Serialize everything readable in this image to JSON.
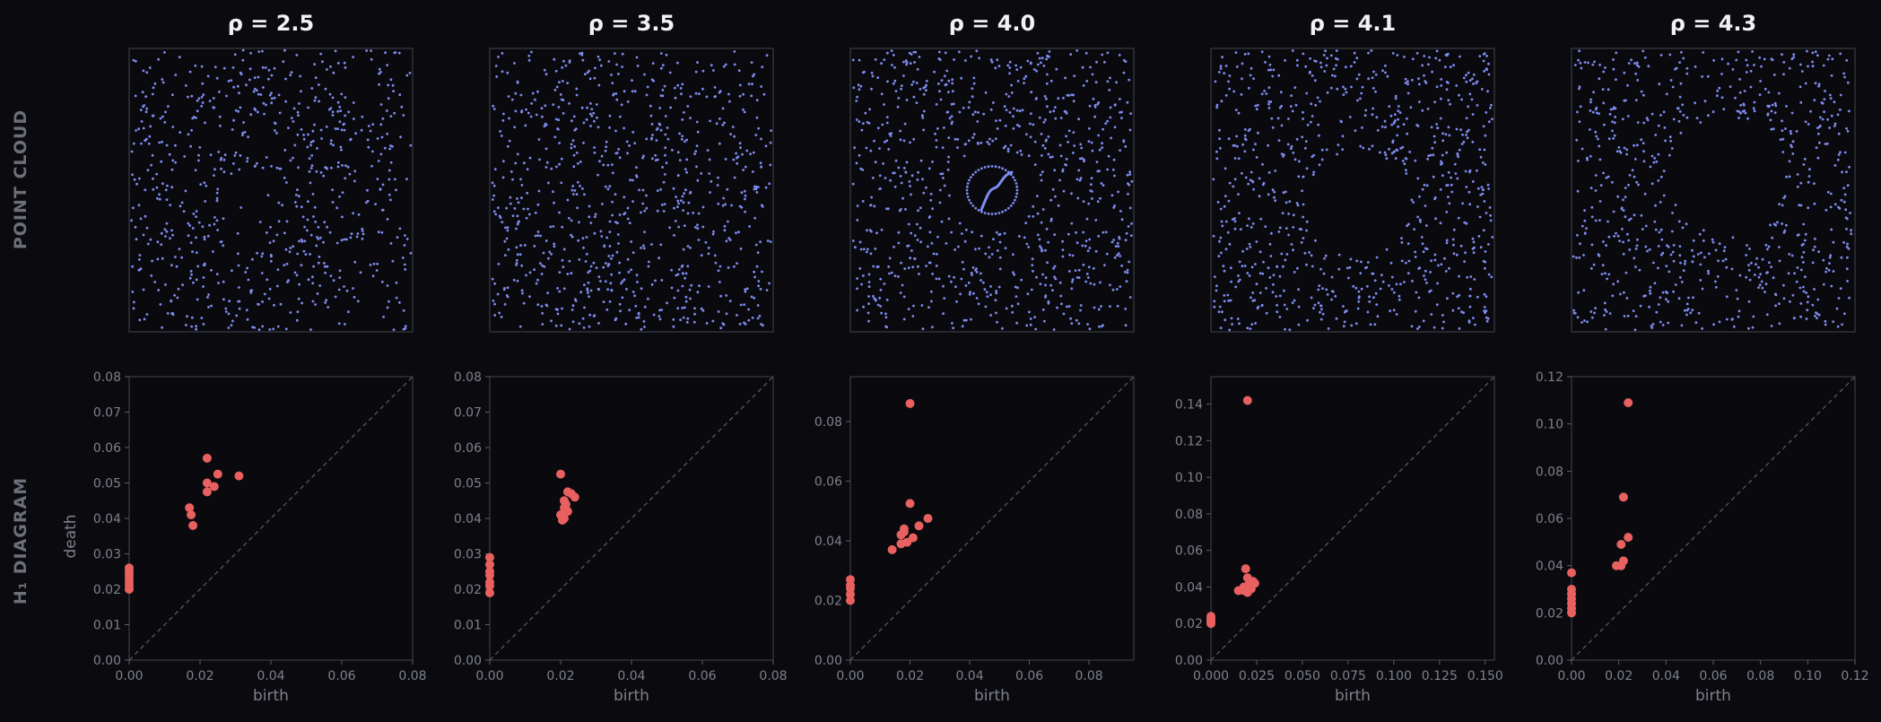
{
  "rows": {
    "top_label": "POINT CLOUD",
    "bottom_label": "H₁ DIAGRAM"
  },
  "colors": {
    "point": "#7f8cf0",
    "h1_point": "#e8605f",
    "background": "#0b0b0f"
  },
  "chart_data": [
    {
      "type": "scatter",
      "title": "ρ = 2.5",
      "point_cloud": {
        "xlim": [
          0,
          1
        ],
        "ylim": [
          0,
          1
        ],
        "n_points": 700,
        "hole": null
      },
      "diagram": {
        "xlabel": "birth",
        "ylabel": "death",
        "xlim": [
          0,
          0.08
        ],
        "ylim": [
          0,
          0.08
        ],
        "xticks": [
          "0.00",
          "0.02",
          "0.04",
          "0.06",
          "0.08"
        ],
        "yticks": [
          "0.00",
          "0.01",
          "0.02",
          "0.03",
          "0.04",
          "0.05",
          "0.06",
          "0.07",
          "0.08"
        ],
        "points": [
          [
            0.017,
            0.043
          ],
          [
            0.0175,
            0.041
          ],
          [
            0.018,
            0.038
          ],
          [
            0.022,
            0.057
          ],
          [
            0.022,
            0.05
          ],
          [
            0.022,
            0.0475
          ],
          [
            0.024,
            0.049
          ],
          [
            0.025,
            0.0525
          ],
          [
            0.031,
            0.052
          ],
          [
            0,
            0.02
          ],
          [
            0,
            0.021
          ],
          [
            0,
            0.022
          ],
          [
            0,
            0.023
          ],
          [
            0,
            0.024
          ],
          [
            0,
            0.025
          ],
          [
            0,
            0.026
          ]
        ]
      }
    },
    {
      "type": "scatter",
      "title": "ρ = 3.5",
      "point_cloud": {
        "xlim": [
          0,
          1
        ],
        "ylim": [
          0,
          1
        ],
        "n_points": 800,
        "hole": null
      },
      "diagram": {
        "xlabel": "birth",
        "ylabel": "",
        "xlim": [
          0,
          0.08
        ],
        "ylim": [
          0,
          0.08
        ],
        "xticks": [
          "0.00",
          "0.02",
          "0.04",
          "0.06",
          "0.08"
        ],
        "yticks": [
          "0.00",
          "0.01",
          "0.02",
          "0.03",
          "0.04",
          "0.05",
          "0.06",
          "0.07",
          "0.08"
        ],
        "points": [
          [
            0.02,
            0.0525
          ],
          [
            0.02,
            0.041
          ],
          [
            0.0205,
            0.0395
          ],
          [
            0.021,
            0.04
          ],
          [
            0.021,
            0.043
          ],
          [
            0.0215,
            0.044
          ],
          [
            0.022,
            0.042
          ],
          [
            0.022,
            0.0475
          ],
          [
            0.023,
            0.047
          ],
          [
            0.024,
            0.046
          ],
          [
            0.021,
            0.045
          ],
          [
            0,
            0.019
          ],
          [
            0,
            0.021
          ],
          [
            0,
            0.022
          ],
          [
            0,
            0.024
          ],
          [
            0,
            0.025
          ],
          [
            0,
            0.027
          ],
          [
            0,
            0.029
          ]
        ]
      }
    },
    {
      "type": "scatter",
      "title": "ρ = 4.0",
      "point_cloud": {
        "xlim": [
          0,
          1
        ],
        "ylim": [
          0,
          1
        ],
        "n_points": 800,
        "hole": "small-ring"
      },
      "diagram": {
        "xlabel": "birth",
        "ylabel": "",
        "xlim": [
          0,
          0.095
        ],
        "ylim": [
          0,
          0.095
        ],
        "xticks": [
          "0.00",
          "0.02",
          "0.04",
          "0.06",
          "0.08"
        ],
        "ytickvals": [
          0,
          0.02,
          0.04,
          0.06,
          0.08
        ],
        "yticks": [
          "0.00",
          "0.02",
          "0.04",
          "0.06",
          "0.08"
        ],
        "points": [
          [
            0.02,
            0.086
          ],
          [
            0.02,
            0.0525
          ],
          [
            0.014,
            0.037
          ],
          [
            0.017,
            0.039
          ],
          [
            0.017,
            0.042
          ],
          [
            0.018,
            0.043
          ],
          [
            0.018,
            0.044
          ],
          [
            0.019,
            0.0395
          ],
          [
            0.021,
            0.041
          ],
          [
            0.023,
            0.045
          ],
          [
            0.026,
            0.0475
          ],
          [
            0,
            0.02
          ],
          [
            0,
            0.022
          ],
          [
            0,
            0.024
          ],
          [
            0,
            0.025
          ],
          [
            0,
            0.027
          ]
        ]
      }
    },
    {
      "type": "scatter",
      "title": "ρ = 4.1",
      "point_cloud": {
        "xlim": [
          0,
          1
        ],
        "ylim": [
          0,
          1
        ],
        "n_points": 800,
        "hole": "large"
      },
      "diagram": {
        "xlabel": "birth",
        "ylabel": "",
        "xlim": [
          0,
          0.155
        ],
        "ylim": [
          0,
          0.155
        ],
        "xticks": [
          "0.000",
          "0.025",
          "0.050",
          "0.075",
          "0.100",
          "0.125",
          "0.150"
        ],
        "xtickvals": [
          0,
          0.025,
          0.05,
          0.075,
          0.1,
          0.125,
          0.15
        ],
        "yticks": [
          "0.00",
          "0.02",
          "0.04",
          "0.06",
          "0.08",
          "0.10",
          "0.12",
          "0.14"
        ],
        "ytickvals": [
          0,
          0.02,
          0.04,
          0.06,
          0.08,
          0.1,
          0.12,
          0.14
        ],
        "points": [
          [
            0.02,
            0.142
          ],
          [
            0.015,
            0.038
          ],
          [
            0.018,
            0.04
          ],
          [
            0.018,
            0.038
          ],
          [
            0.019,
            0.05
          ],
          [
            0.02,
            0.045
          ],
          [
            0.021,
            0.042
          ],
          [
            0.022,
            0.041
          ],
          [
            0.022,
            0.039
          ],
          [
            0.023,
            0.043
          ],
          [
            0.024,
            0.042
          ],
          [
            0.02,
            0.037
          ],
          [
            0,
            0.02
          ],
          [
            0,
            0.021
          ],
          [
            0,
            0.022
          ],
          [
            0,
            0.023
          ],
          [
            0,
            0.024
          ]
        ]
      }
    },
    {
      "type": "scatter",
      "title": "ρ = 4.3",
      "point_cloud": {
        "xlim": [
          0,
          1
        ],
        "ylim": [
          0,
          1
        ],
        "n_points": 700,
        "hole": "large-upper-right"
      },
      "diagram": {
        "xlabel": "birth",
        "ylabel": "",
        "xlim": [
          0,
          0.12
        ],
        "ylim": [
          0,
          0.12
        ],
        "xticks": [
          "0.00",
          "0.02",
          "0.04",
          "0.06",
          "0.08",
          "0.10",
          "0.12"
        ],
        "xtickvals": [
          0,
          0.02,
          0.04,
          0.06,
          0.08,
          0.1,
          0.12
        ],
        "yticks": [
          "0.00",
          "0.02",
          "0.04",
          "0.06",
          "0.08",
          "0.10",
          "0.12"
        ],
        "ytickvals": [
          0,
          0.02,
          0.04,
          0.06,
          0.08,
          0.1,
          0.12
        ],
        "points": [
          [
            0.024,
            0.109
          ],
          [
            0.022,
            0.069
          ],
          [
            0.024,
            0.052
          ],
          [
            0.021,
            0.049
          ],
          [
            0.019,
            0.04
          ],
          [
            0.021,
            0.04
          ],
          [
            0.022,
            0.042
          ],
          [
            0,
            0.02
          ],
          [
            0,
            0.022
          ],
          [
            0,
            0.024
          ],
          [
            0,
            0.026
          ],
          [
            0,
            0.028
          ],
          [
            0,
            0.03
          ],
          [
            0,
            0.037
          ]
        ]
      }
    }
  ]
}
